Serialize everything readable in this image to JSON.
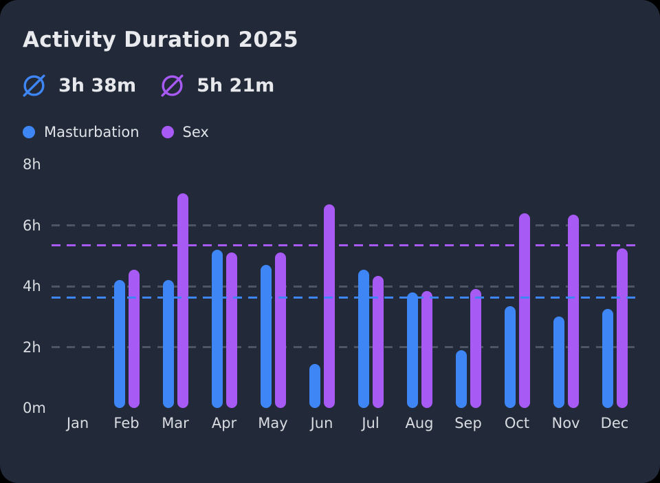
{
  "window": {
    "outer_background_color": "#000000"
  },
  "card": {
    "background_color": "#222939",
    "title": "Activity Duration 2025",
    "averages": [
      {
        "series": "Masturbation",
        "value": "3h 38m",
        "color": "#3E86F5"
      },
      {
        "series": "Sex",
        "value": "5h 21m",
        "color": "#A85AF5"
      }
    ],
    "legend": [
      {
        "label": "Masturbation",
        "color": "#3E86F5"
      },
      {
        "label": "Sex",
        "color": "#A85AF5"
      }
    ]
  },
  "chart_data": {
    "type": "bar",
    "title": "Activity Duration 2025",
    "unit": "hours",
    "categories": [
      "Jan",
      "Feb",
      "Mar",
      "Apr",
      "May",
      "Jun",
      "Jul",
      "Aug",
      "Sep",
      "Oct",
      "Nov",
      "Dec"
    ],
    "series": [
      {
        "name": "Masturbation",
        "color": "#3E86F5",
        "values": [
          0,
          4.2,
          4.2,
          5.2,
          4.7,
          1.45,
          4.55,
          3.8,
          1.9,
          3.35,
          3.0,
          3.25
        ],
        "average_hours": 3.633,
        "average_label": "3h 38m"
      },
      {
        "name": "Sex",
        "color": "#A85AF5",
        "values": [
          0,
          4.55,
          7.05,
          5.1,
          5.1,
          6.7,
          4.35,
          3.85,
          3.9,
          6.4,
          6.35,
          5.25
        ],
        "average_hours": 5.35,
        "average_label": "5h 21m"
      }
    ],
    "y_ticks": [
      {
        "label": "8h",
        "value": 8
      },
      {
        "label": "6h",
        "value": 6
      },
      {
        "label": "4h",
        "value": 4
      },
      {
        "label": "2h",
        "value": 2
      },
      {
        "label": "0m",
        "value": 0
      }
    ],
    "ylim": [
      0,
      8
    ],
    "gridline_values": [
      6,
      4,
      2
    ],
    "grid_on": true,
    "grid_color": "#4E5666",
    "axis_label_color": "#D9DCE1",
    "legend_position": "top-left"
  }
}
